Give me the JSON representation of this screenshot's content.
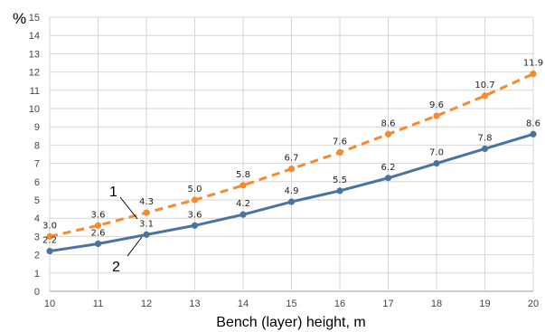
{
  "chart_data": {
    "type": "line",
    "ylabel": "%",
    "xlabel": "Bench (layer) height, m",
    "x": [
      10,
      11,
      12,
      13,
      14,
      15,
      16,
      17,
      18,
      19,
      20
    ],
    "xlim": [
      10,
      20
    ],
    "ylim": [
      0,
      15
    ],
    "yticks": [
      0,
      1,
      2,
      3,
      4,
      5,
      6,
      7,
      8,
      9,
      10,
      11,
      12,
      13,
      14,
      15
    ],
    "grid": true,
    "legend": "none",
    "series": [
      {
        "name": "1",
        "style": "dashed",
        "color": "#f58a2e",
        "values": [
          3.0,
          3.6,
          4.3,
          5.0,
          5.8,
          6.7,
          7.6,
          8.6,
          9.6,
          10.7,
          11.9
        ],
        "labels": [
          "3.0",
          "3.6",
          "4.3",
          "5.0",
          "5.8",
          "6.7",
          "7.6",
          "8.6",
          "9.6",
          "10.7",
          "11.9"
        ]
      },
      {
        "name": "2",
        "style": "solid",
        "color": "#4a74a0",
        "values": [
          2.2,
          2.6,
          3.1,
          3.6,
          4.2,
          4.9,
          5.5,
          6.2,
          7.0,
          7.8,
          8.6
        ],
        "labels": [
          "2.2",
          "2.6",
          "3.1",
          "3.6",
          "4.2",
          "4.9",
          "5.5",
          "6.2",
          "7.0",
          "7.8",
          "8.6"
        ]
      }
    ]
  }
}
